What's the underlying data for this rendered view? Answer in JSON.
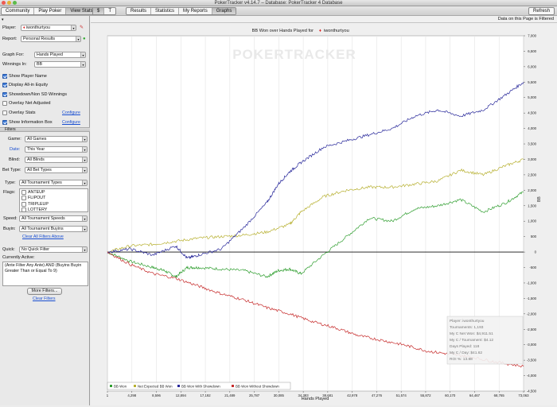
{
  "window": {
    "title": "PokerTracker v4.14.7 – Database: PokerTracker 4 Database"
  },
  "toolbar": {
    "nav_tabs": [
      "Community",
      "Play Poker",
      "View Stats"
    ],
    "currency_tabs": [
      "$",
      "T"
    ],
    "view_tabs": [
      "Results",
      "Statistics",
      "My Reports",
      "Graphs"
    ],
    "refresh_label": "Refresh"
  },
  "filtered_notice": "Data on this Page is Filtered",
  "sidebar": {
    "player_label": "Player:",
    "player_value": "iwonthurtyou",
    "report_label": "Report:",
    "report_value": "Personal Results",
    "graph_for_label": "Graph For:",
    "graph_for_value": "Hands Played",
    "winnings_in_label": "Winnings In:",
    "winnings_in_value": "BB",
    "checks": [
      {
        "label": "Show Player Name",
        "checked": true
      },
      {
        "label": "Display All-in Equity",
        "checked": true
      },
      {
        "label": "Showdown/Non SD Winnings",
        "checked": true
      },
      {
        "label": "Overlay Net Adjusted",
        "checked": false
      },
      {
        "label": "Overlay Stats",
        "checked": false
      },
      {
        "label": "Show Information Box",
        "checked": true
      }
    ],
    "configure_label": "Configure",
    "filters_header": "Filters",
    "game_label": "Game:",
    "game_value": "All Games",
    "date_label": "Date:",
    "date_value": "This Year",
    "blind_label": "Blind:",
    "blind_value": "All Blinds",
    "bet_type_label": "Bet Type:",
    "bet_type_value": "All Bet Types",
    "type_label": "Type:",
    "type_value": "All Tournament Types",
    "flags_label": "Flags:",
    "flags": [
      "ANTEUP",
      "FLIPOUT",
      "TRIPLEUP",
      "LOTTERY"
    ],
    "speed_label": "Speed:",
    "speed_value": "All Tournament Speeds",
    "buyin_label": "Buyin:",
    "buyin_value": "All Tournament Buyins",
    "clear_all_label": "Clear All Filters Above",
    "quick_label": "Quick:",
    "quick_value": "No Quick Filter",
    "currently_active_label": "Currently Active:",
    "currently_active_text": "(Ante Filter Any Ante) AND (Buyins Buyin Greater Than or Equal To 9)",
    "more_filters_label": "More Filters...",
    "clear_filters_label": "Clear Filters"
  },
  "colors": {
    "bb_won": "#2f9e2f",
    "net_expected": "#b7b030",
    "with_showdown": "#27279a",
    "without_showdown": "#c62a2a"
  },
  "chart_data": {
    "type": "line",
    "title": "BB Won over Hands Played for",
    "title_player": "iwonthurtyou",
    "watermark": "POKERTRACKER",
    "xlabel": "Hands Played",
    "ylabel": "BB",
    "x_ticks": [
      "1",
      "4,298",
      "8,596",
      "12,894",
      "17,192",
      "21,489",
      "25,787",
      "30,085",
      "34,383",
      "38,681",
      "42,978",
      "47,276",
      "51,574",
      "55,872",
      "60,170",
      "64,467",
      "68,765",
      "73,063"
    ],
    "y_ticks": [
      7000,
      6500,
      6000,
      5500,
      5000,
      4500,
      4000,
      3500,
      3000,
      2500,
      2000,
      1500,
      1000,
      500,
      0,
      -500,
      -1000,
      -1500,
      -2000,
      -2500,
      -3000,
      -3500,
      -4000,
      -4500
    ],
    "y_tick_labels": [
      "7,000",
      "6,500",
      "6,000",
      "5,500",
      "5,000",
      "4,500",
      "4,000",
      "3,500",
      "3,000",
      "2,500",
      "2,000",
      "1,500",
      "1,000",
      "500",
      "0",
      "-500",
      "-1,000",
      "-1,500",
      "-2,000",
      "-2,500",
      "-3,000",
      "-3,500",
      "-4,000",
      "-4,500"
    ],
    "xlim": [
      1,
      73063
    ],
    "ylim": [
      -4500,
      7000
    ],
    "grid": "vertical",
    "legend_position": "bottom-left",
    "series": [
      {
        "name": "BB Won",
        "color": "#2f9e2f",
        "x": [
          1,
          4000,
          8000,
          10000,
          12000,
          14000,
          16000,
          20000,
          24000,
          28000,
          30000,
          32000,
          34000,
          38000,
          42000,
          46000,
          50000,
          54000,
          58000,
          62000,
          66000,
          70000,
          73063
        ],
        "y": [
          0,
          -300,
          -500,
          -600,
          -800,
          -500,
          -500,
          -550,
          -600,
          -800,
          -600,
          -550,
          -700,
          -80,
          500,
          1100,
          1000,
          1400,
          1500,
          1700,
          1300,
          1600,
          1950
        ]
      },
      {
        "name": "Net Expected BB Won",
        "color": "#b7b030",
        "x": [
          1,
          4000,
          8000,
          12000,
          16000,
          20000,
          24000,
          28000,
          32000,
          34000,
          38000,
          42000,
          46000,
          50000,
          54000,
          58000,
          62000,
          66000,
          70000,
          73063
        ],
        "y": [
          0,
          200,
          250,
          350,
          450,
          500,
          550,
          650,
          900,
          1300,
          1800,
          2000,
          2100,
          2100,
          2200,
          2300,
          2650,
          2500,
          2800,
          3000
        ]
      },
      {
        "name": "BB Won With Showdown",
        "color": "#27279a",
        "x": [
          1,
          4000,
          8000,
          12000,
          14000,
          16000,
          20000,
          24000,
          28000,
          30000,
          32000,
          34000,
          38000,
          42000,
          46000,
          50000,
          54000,
          58000,
          62000,
          66000,
          70000,
          73063
        ],
        "y": [
          0,
          100,
          -100,
          200,
          -200,
          -100,
          100,
          800,
          1600,
          2200,
          2600,
          2900,
          3400,
          3600,
          3800,
          4000,
          4400,
          4600,
          4400,
          4600,
          5100,
          5500
        ]
      },
      {
        "name": "BB Won Without Showdown",
        "color": "#c62a2a",
        "x": [
          1,
          4000,
          8000,
          12000,
          16000,
          20000,
          24000,
          28000,
          32000,
          36000,
          40000,
          44000,
          48000,
          52000,
          56000,
          60000,
          64000,
          68000,
          73063
        ],
        "y": [
          0,
          -400,
          -700,
          -850,
          -1100,
          -1350,
          -1550,
          -1800,
          -2000,
          -2250,
          -2450,
          -2700,
          -2850,
          -3000,
          -3200,
          -3300,
          -3400,
          -3550,
          -3700
        ]
      }
    ],
    "info_box": [
      "Player: iwonthurtyou",
      "Tournaments: 1,193",
      "My C Net Won: $4,911.51",
      "My C / Tournament: $4.12",
      "Days Played: 118",
      "My C / Day: $41.62",
      "ROI %: 13.88"
    ]
  }
}
